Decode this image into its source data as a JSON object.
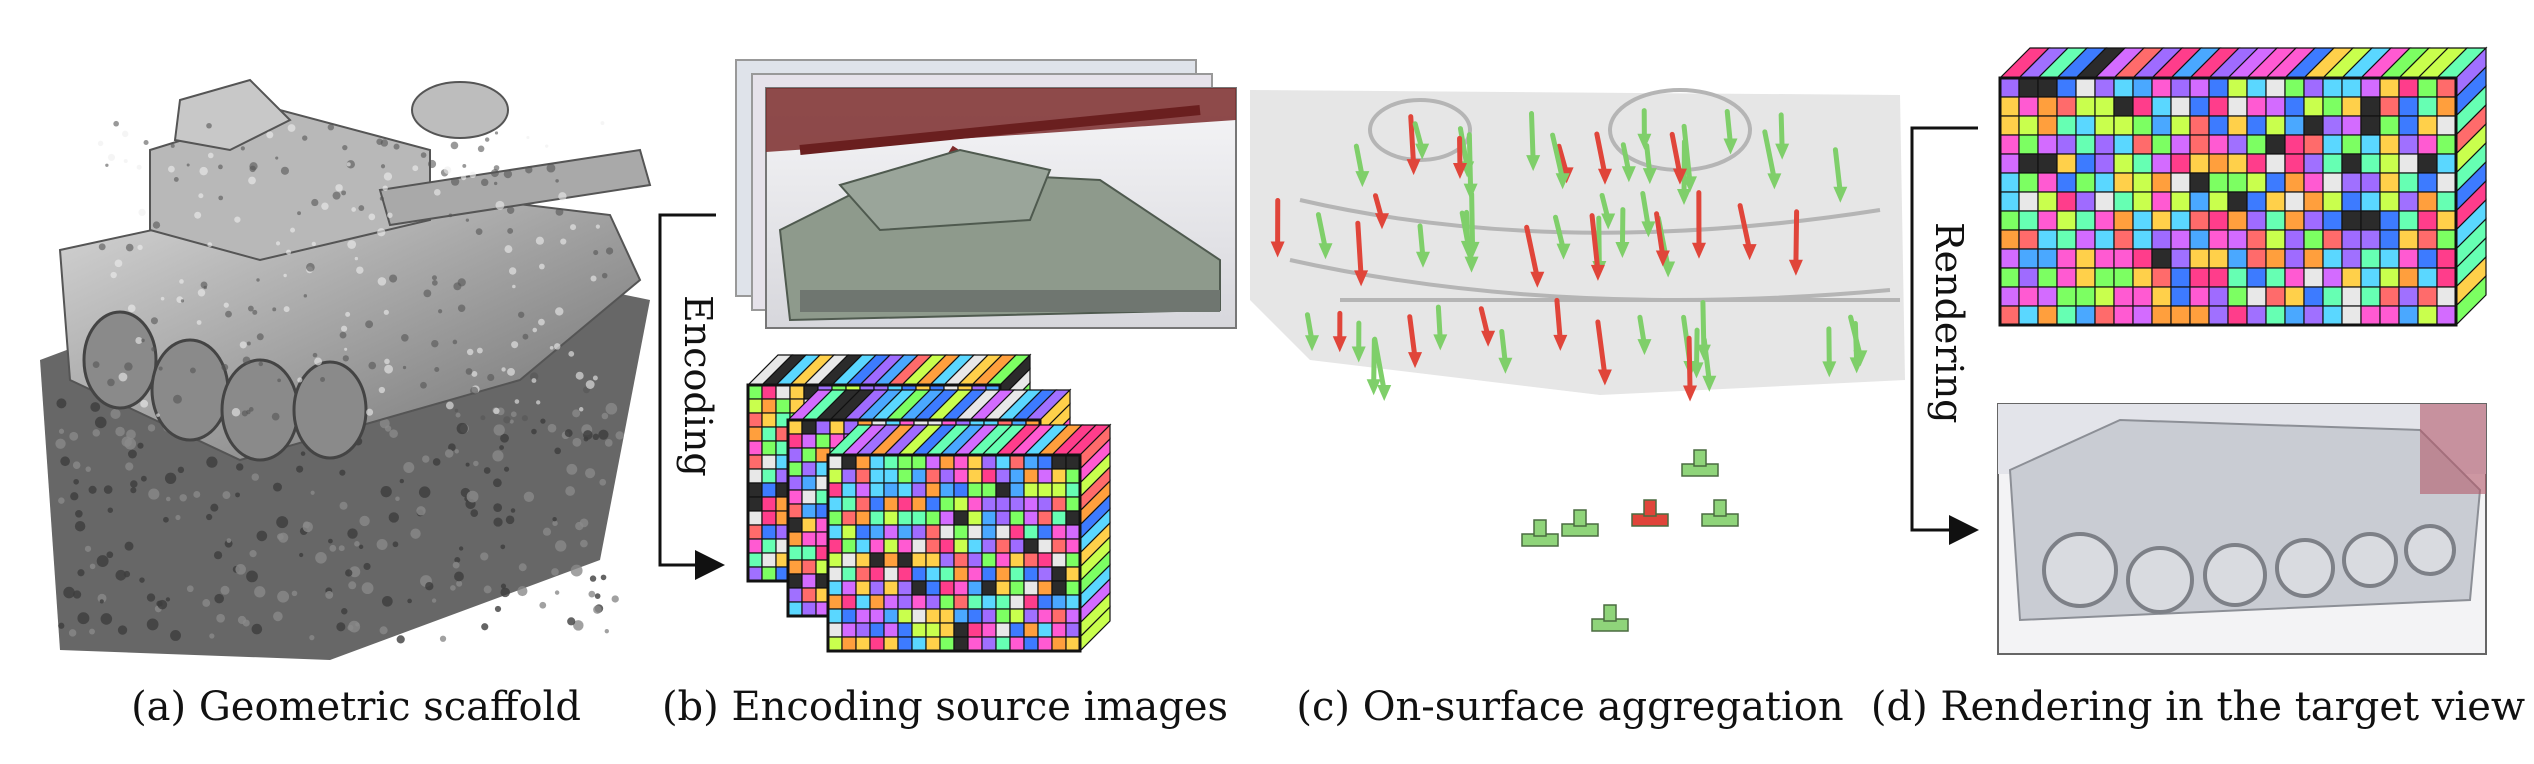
{
  "figure": {
    "panels": [
      {
        "id": "a",
        "caption": "(a) Geometric scaffold"
      },
      {
        "id": "b",
        "caption": "(b) Encoding source images"
      },
      {
        "id": "c",
        "caption": "(c) On-surface aggregation"
      },
      {
        "id": "d",
        "caption": "(d) Rendering in the target view"
      }
    ],
    "arrows": {
      "encoding_label": "Encoding",
      "rendering_label": "Rendering"
    },
    "palette": [
      "#ff5ad2",
      "#5ad7ff",
      "#7cff62",
      "#ffd04a",
      "#ff6b6b",
      "#a070ff",
      "#4aa8ff",
      "#e8e8e8",
      "#2b2b2b",
      "#9f6bff",
      "#ff9f3d",
      "#66ffb3",
      "#c9ff4d",
      "#d36bff",
      "#3d7bff",
      "#ff3d8b"
    ],
    "colors": {
      "scaffold_gray": "#9a9a9a",
      "arrow_green": "#7fcf6a",
      "arrow_red": "#e0453a",
      "frame_stroke": "#111111"
    }
  }
}
